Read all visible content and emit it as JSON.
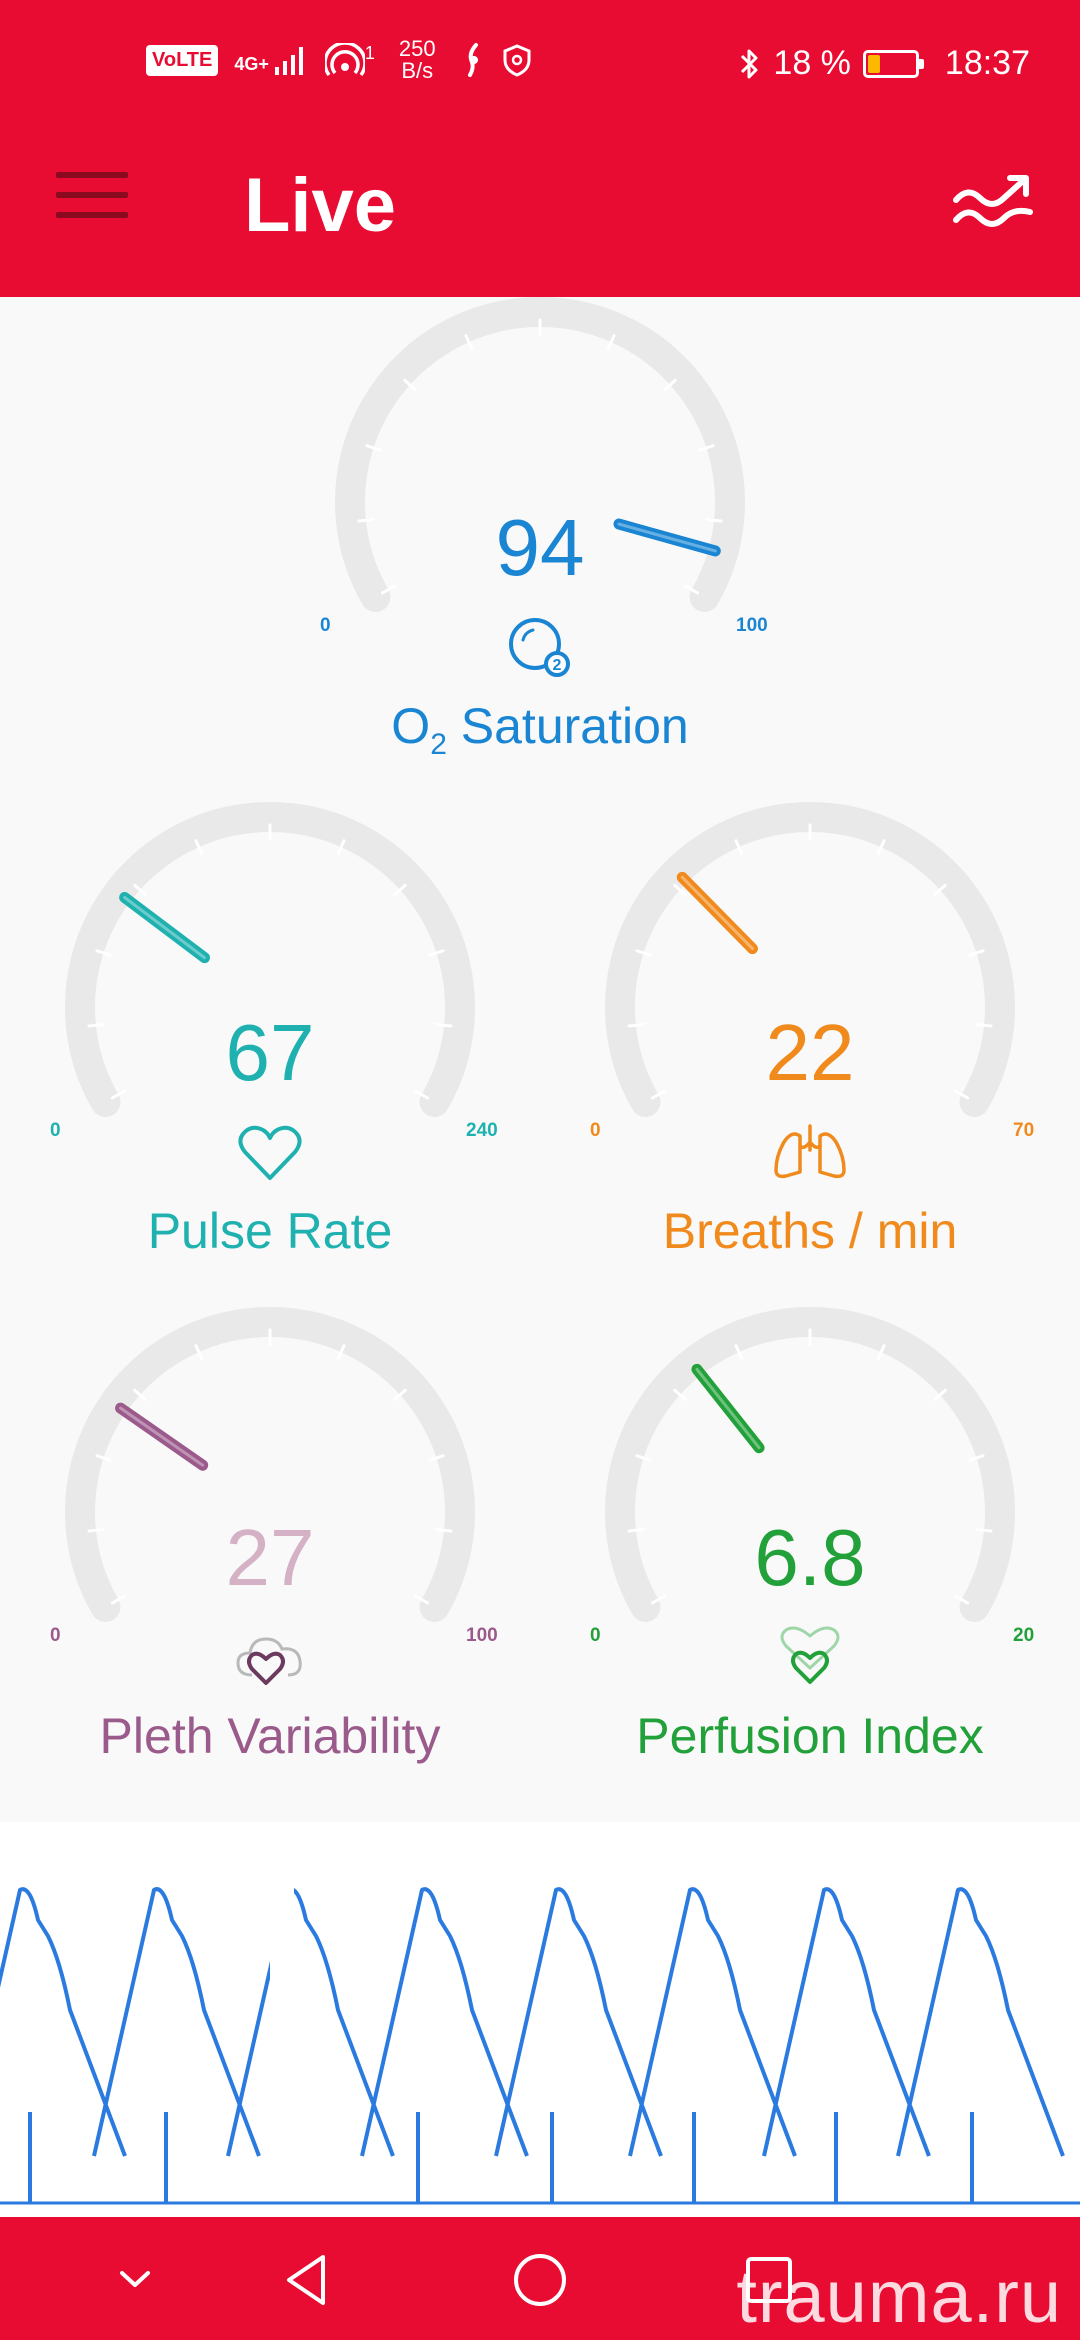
{
  "status_bar": {
    "volte": "VoLTE",
    "network": "4G+",
    "hotspot_sup": "1",
    "speed_value": "250",
    "speed_unit": "B/s",
    "battery_percent": "18 %",
    "time": "18:37"
  },
  "header": {
    "title": "Live"
  },
  "gauges": {
    "o2": {
      "value": "94",
      "min": "0",
      "max": "100",
      "label_pre": "O",
      "label_sub": "2",
      "label_post": " Saturation",
      "color": "#1a86d3",
      "icon": "o2-bubble-icon",
      "value_num": 94,
      "range": [
        0,
        100
      ]
    },
    "pulse": {
      "value": "67",
      "min": "0",
      "max": "240",
      "label": "Pulse Rate",
      "color": "#1fb1b0",
      "icon": "heart-icon",
      "value_num": 67,
      "range": [
        0,
        240
      ]
    },
    "breaths": {
      "value": "22",
      "min": "0",
      "max": "70",
      "label": "Breaths / min",
      "color": "#f08a1d",
      "icon": "lungs-icon",
      "value_num": 22,
      "range": [
        0,
        70
      ]
    },
    "pleth": {
      "value": "27",
      "min": "0",
      "max": "100",
      "label": "Pleth Variability",
      "color": "#9b5a8c",
      "value_color": "#d4b1c4",
      "icon": "cloud-heart-icon",
      "value_num": 27,
      "range": [
        0,
        100
      ]
    },
    "perfusion": {
      "value": "6.8",
      "min": "0",
      "max": "20",
      "label": "Perfusion Index",
      "color": "#22a13a",
      "icon": "double-heart-icon",
      "value_num": 6.8,
      "range": [
        0,
        20
      ]
    }
  },
  "waveform": {
    "color": "#2a7ae0"
  },
  "watermark": "trauma.ru"
}
